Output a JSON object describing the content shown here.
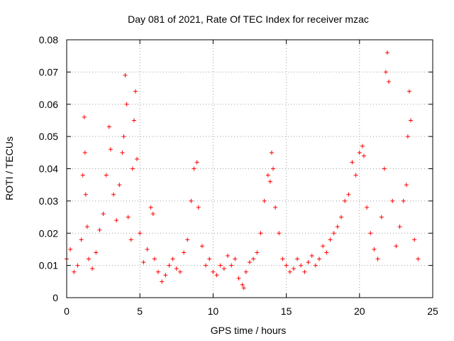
{
  "chart_data": {
    "type": "scatter",
    "title": "Day 081 of 2021, Rate Of TEC Index for receiver mzac",
    "xlabel": "GPS time / hours",
    "ylabel": "ROTI / TECUs",
    "xlim": [
      0,
      25
    ],
    "ylim": [
      0,
      0.08
    ],
    "xticks": [
      0,
      5,
      10,
      15,
      20,
      25
    ],
    "xtick_labels": [
      "0",
      "5",
      "10",
      "15",
      "20",
      "25"
    ],
    "yticks": [
      0,
      0.01,
      0.02,
      0.03,
      0.04,
      0.05,
      0.06,
      0.07,
      0.08
    ],
    "ytick_labels": [
      "0",
      "0.01",
      "0.02",
      "0.03",
      "0.04",
      "0.05",
      "0.06",
      "0.07",
      "0.08"
    ],
    "grid": true,
    "legend": "none",
    "marker": "+",
    "color": "#ff0000",
    "series": [
      {
        "name": "mzac",
        "x": [
          0.0,
          0.25,
          0.5,
          0.75,
          1.0,
          1.1,
          1.2,
          1.25,
          1.3,
          1.4,
          1.5,
          1.75,
          2.0,
          2.25,
          2.5,
          2.7,
          2.9,
          3.0,
          3.2,
          3.4,
          3.6,
          3.8,
          3.9,
          4.0,
          4.1,
          4.2,
          4.4,
          4.5,
          4.6,
          4.7,
          4.8,
          5.0,
          5.25,
          5.5,
          5.75,
          5.9,
          6.0,
          6.25,
          6.5,
          6.75,
          7.0,
          7.25,
          7.5,
          7.75,
          8.0,
          8.25,
          8.5,
          8.7,
          8.9,
          9.0,
          9.25,
          9.5,
          9.75,
          10.0,
          10.25,
          10.5,
          10.75,
          11.0,
          11.25,
          11.5,
          11.75,
          12.0,
          12.1,
          12.25,
          12.5,
          12.75,
          13.0,
          13.25,
          13.5,
          13.75,
          13.9,
          14.0,
          14.1,
          14.25,
          14.5,
          14.75,
          15.0,
          15.25,
          15.5,
          15.75,
          16.0,
          16.25,
          16.5,
          16.75,
          17.0,
          17.25,
          17.5,
          17.75,
          18.0,
          18.25,
          18.5,
          18.75,
          19.0,
          19.25,
          19.5,
          19.75,
          20.0,
          20.2,
          20.3,
          20.5,
          20.75,
          21.0,
          21.25,
          21.5,
          21.7,
          21.8,
          21.9,
          22.0,
          22.25,
          22.5,
          22.75,
          23.0,
          23.2,
          23.3,
          23.4,
          23.5,
          23.75,
          24.0
        ],
        "y": [
          0.012,
          0.015,
          0.008,
          0.01,
          0.018,
          0.038,
          0.056,
          0.045,
          0.032,
          0.022,
          0.012,
          0.009,
          0.014,
          0.021,
          0.026,
          0.038,
          0.053,
          0.046,
          0.032,
          0.024,
          0.035,
          0.045,
          0.05,
          0.069,
          0.06,
          0.025,
          0.018,
          0.04,
          0.055,
          0.064,
          0.043,
          0.02,
          0.011,
          0.015,
          0.028,
          0.026,
          0.012,
          0.008,
          0.005,
          0.007,
          0.01,
          0.012,
          0.009,
          0.008,
          0.014,
          0.018,
          0.03,
          0.04,
          0.042,
          0.028,
          0.016,
          0.01,
          0.012,
          0.008,
          0.007,
          0.01,
          0.009,
          0.013,
          0.01,
          0.012,
          0.006,
          0.004,
          0.003,
          0.008,
          0.011,
          0.012,
          0.014,
          0.02,
          0.03,
          0.038,
          0.036,
          0.045,
          0.04,
          0.028,
          0.02,
          0.012,
          0.01,
          0.008,
          0.009,
          0.012,
          0.01,
          0.008,
          0.011,
          0.013,
          0.01,
          0.012,
          0.016,
          0.014,
          0.018,
          0.02,
          0.022,
          0.025,
          0.03,
          0.032,
          0.042,
          0.038,
          0.045,
          0.047,
          0.044,
          0.028,
          0.02,
          0.015,
          0.012,
          0.025,
          0.04,
          0.07,
          0.076,
          0.067,
          0.03,
          0.016,
          0.022,
          0.03,
          0.035,
          0.05,
          0.064,
          0.055,
          0.018,
          0.012
        ]
      }
    ]
  }
}
